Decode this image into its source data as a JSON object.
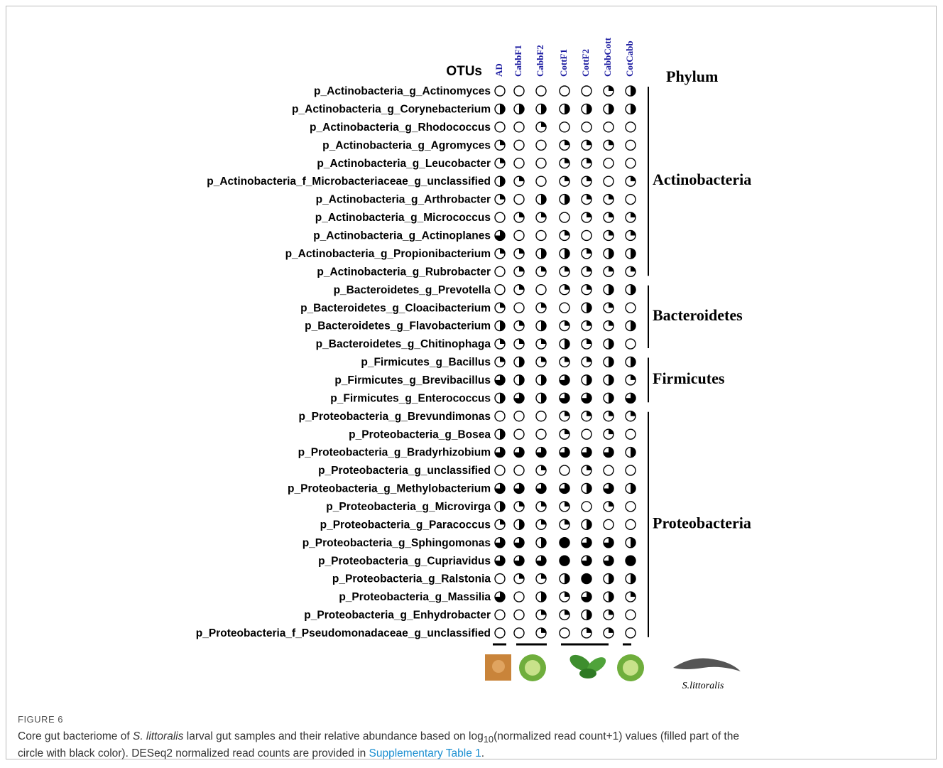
{
  "figure": {
    "header_otus": "OTUs",
    "header_phylum": "Phylum",
    "column_headers": [
      "AD",
      "CabbF1",
      "CabbF2",
      "CottF1",
      "CottF2",
      "CabbCott",
      "CotCabb"
    ],
    "phyla": [
      {
        "name": "Actinobacteria",
        "otus": [
          {
            "label": "p_Actinobacteria_g_Actinomyces",
            "abundance": [
              0,
              0,
              0,
              0,
              0,
              0.25,
              0.5
            ]
          },
          {
            "label": "p_Actinobacteria_g_Corynebacterium",
            "abundance": [
              0.5,
              0.5,
              0.5,
              0.5,
              0.5,
              0.5,
              0.5
            ]
          },
          {
            "label": "p_Actinobacteria_g_Rhodococcus",
            "abundance": [
              0,
              0,
              0.25,
              0,
              0,
              0,
              0
            ]
          },
          {
            "label": "p_Actinobacteria_g_Agromyces",
            "abundance": [
              0.25,
              0,
              0,
              0.25,
              0.25,
              0.25,
              0
            ]
          },
          {
            "label": "p_Actinobacteria_g_Leucobacter",
            "abundance": [
              0.25,
              0,
              0,
              0.25,
              0.25,
              0,
              0
            ]
          },
          {
            "label": "p_Actinobacteria_f_Microbacteriaceae_g_unclassified",
            "abundance": [
              0.5,
              0.25,
              0,
              0.25,
              0.25,
              0,
              0.25
            ]
          },
          {
            "label": "p_Actinobacteria_g_Arthrobacter",
            "abundance": [
              0.25,
              0,
              0.5,
              0.5,
              0.25,
              0.25,
              0
            ]
          },
          {
            "label": "p_Actinobacteria_g_Micrococcus",
            "abundance": [
              0,
              0.25,
              0.25,
              0,
              0.25,
              0.25,
              0.25
            ]
          },
          {
            "label": "p_Actinobacteria_g_Actinoplanes",
            "abundance": [
              0.75,
              0,
              0,
              0.25,
              0,
              0.25,
              0.25
            ]
          },
          {
            "label": "p_Actinobacteria_g_Propionibacterium",
            "abundance": [
              0.25,
              0.25,
              0.5,
              0.5,
              0.25,
              0.5,
              0.5
            ]
          },
          {
            "label": "p_Actinobacteria_g_Rubrobacter",
            "abundance": [
              0,
              0.25,
              0.25,
              0.25,
              0.25,
              0.25,
              0.25
            ]
          }
        ]
      },
      {
        "name": "Bacteroidetes",
        "otus": [
          {
            "label": "p_Bacteroidetes_g_Prevotella",
            "abundance": [
              0,
              0.25,
              0,
              0.25,
              0.25,
              0.5,
              0.5
            ]
          },
          {
            "label": "p_Bacteroidetes_g_Cloacibacterium",
            "abundance": [
              0.25,
              0,
              0.25,
              0,
              0.5,
              0.25,
              0
            ]
          },
          {
            "label": "p_Bacteroidetes_g_Flavobacterium",
            "abundance": [
              0.5,
              0.25,
              0.5,
              0.25,
              0.25,
              0.25,
              0.5
            ]
          },
          {
            "label": "p_Bacteroidetes_g_Chitinophaga",
            "abundance": [
              0.25,
              0.25,
              0.25,
              0.5,
              0.25,
              0.5,
              0
            ]
          }
        ]
      },
      {
        "name": "Firmicutes",
        "otus": [
          {
            "label": "p_Firmicutes_g_Bacillus",
            "abundance": [
              0.25,
              0.5,
              0.25,
              0.25,
              0.25,
              0.5,
              0.5
            ]
          },
          {
            "label": "p_Firmicutes_g_Brevibacillus",
            "abundance": [
              0.75,
              0.5,
              0.5,
              0.75,
              0.5,
              0.5,
              0.25
            ]
          },
          {
            "label": "p_Firmicutes_g_Enterococcus",
            "abundance": [
              0.5,
              0.75,
              0.5,
              0.75,
              0.75,
              0.5,
              0.75
            ]
          }
        ]
      },
      {
        "name": "Proteobacteria",
        "otus": [
          {
            "label": "p_Proteobacteria_g_Brevundimonas",
            "abundance": [
              0,
              0,
              0,
              0.25,
              0.25,
              0.25,
              0.25
            ]
          },
          {
            "label": "p_Proteobacteria_g_Bosea",
            "abundance": [
              0.5,
              0,
              0,
              0.25,
              0,
              0.25,
              0
            ]
          },
          {
            "label": "p_Proteobacteria_g_Bradyrhizobium",
            "abundance": [
              0.75,
              0.75,
              0.75,
              0.75,
              0.75,
              0.75,
              0.5
            ]
          },
          {
            "label": "p_Proteobacteria_g_unclassified",
            "abundance": [
              0,
              0,
              0.25,
              0,
              0.25,
              0,
              0
            ]
          },
          {
            "label": "p_Proteobacteria_g_Methylobacterium",
            "abundance": [
              0.75,
              0.75,
              0.75,
              0.75,
              0.5,
              0.75,
              0.5
            ]
          },
          {
            "label": "p_Proteobacteria_g_Microvirga",
            "abundance": [
              0.5,
              0.25,
              0.25,
              0.25,
              0,
              0.25,
              0
            ]
          },
          {
            "label": "p_Proteobacteria_g_Paracoccus",
            "abundance": [
              0.25,
              0.5,
              0.25,
              0.25,
              0.5,
              0,
              0
            ]
          },
          {
            "label": "p_Proteobacteria_g_Sphingomonas",
            "abundance": [
              0.75,
              0.75,
              0.5,
              1,
              0.75,
              0.75,
              0.5
            ]
          },
          {
            "label": "p_Proteobacteria_g_Cupriavidus",
            "abundance": [
              0.75,
              0.75,
              0.75,
              1,
              0.75,
              0.75,
              1
            ]
          },
          {
            "label": "p_Proteobacteria_g_Ralstonia",
            "abundance": [
              0,
              0.25,
              0.25,
              0.5,
              1,
              0.5,
              0.5
            ]
          },
          {
            "label": "p_Proteobacteria_g_Massilia",
            "abundance": [
              0.75,
              0,
              0.5,
              0.25,
              0.75,
              0.5,
              0.25
            ]
          },
          {
            "label": "p_Proteobacteria_g_Enhydrobacter",
            "abundance": [
              0,
              0,
              0.25,
              0.25,
              0.5,
              0.25,
              0
            ]
          },
          {
            "label": "p_Proteobacteria_f_Pseudomonadaceae_g_unclassified",
            "abundance": [
              0,
              0,
              0.25,
              0,
              0.25,
              0.25,
              0
            ]
          }
        ]
      }
    ],
    "species_label": "S.littoralis",
    "caption": {
      "figure_number": "FIGURE 6",
      "part1": "Core gut bacteriome of ",
      "species": "S. littoralis",
      "part2": " larval gut samples and their relative abundance based on log",
      "subscript": "10",
      "part3": "(normalized read count+1) values (filled part of the",
      "part4": "circle with black color). DESeq2 normalized read counts are provided in ",
      "link": "Supplementary Table 1",
      "part5": "."
    }
  }
}
